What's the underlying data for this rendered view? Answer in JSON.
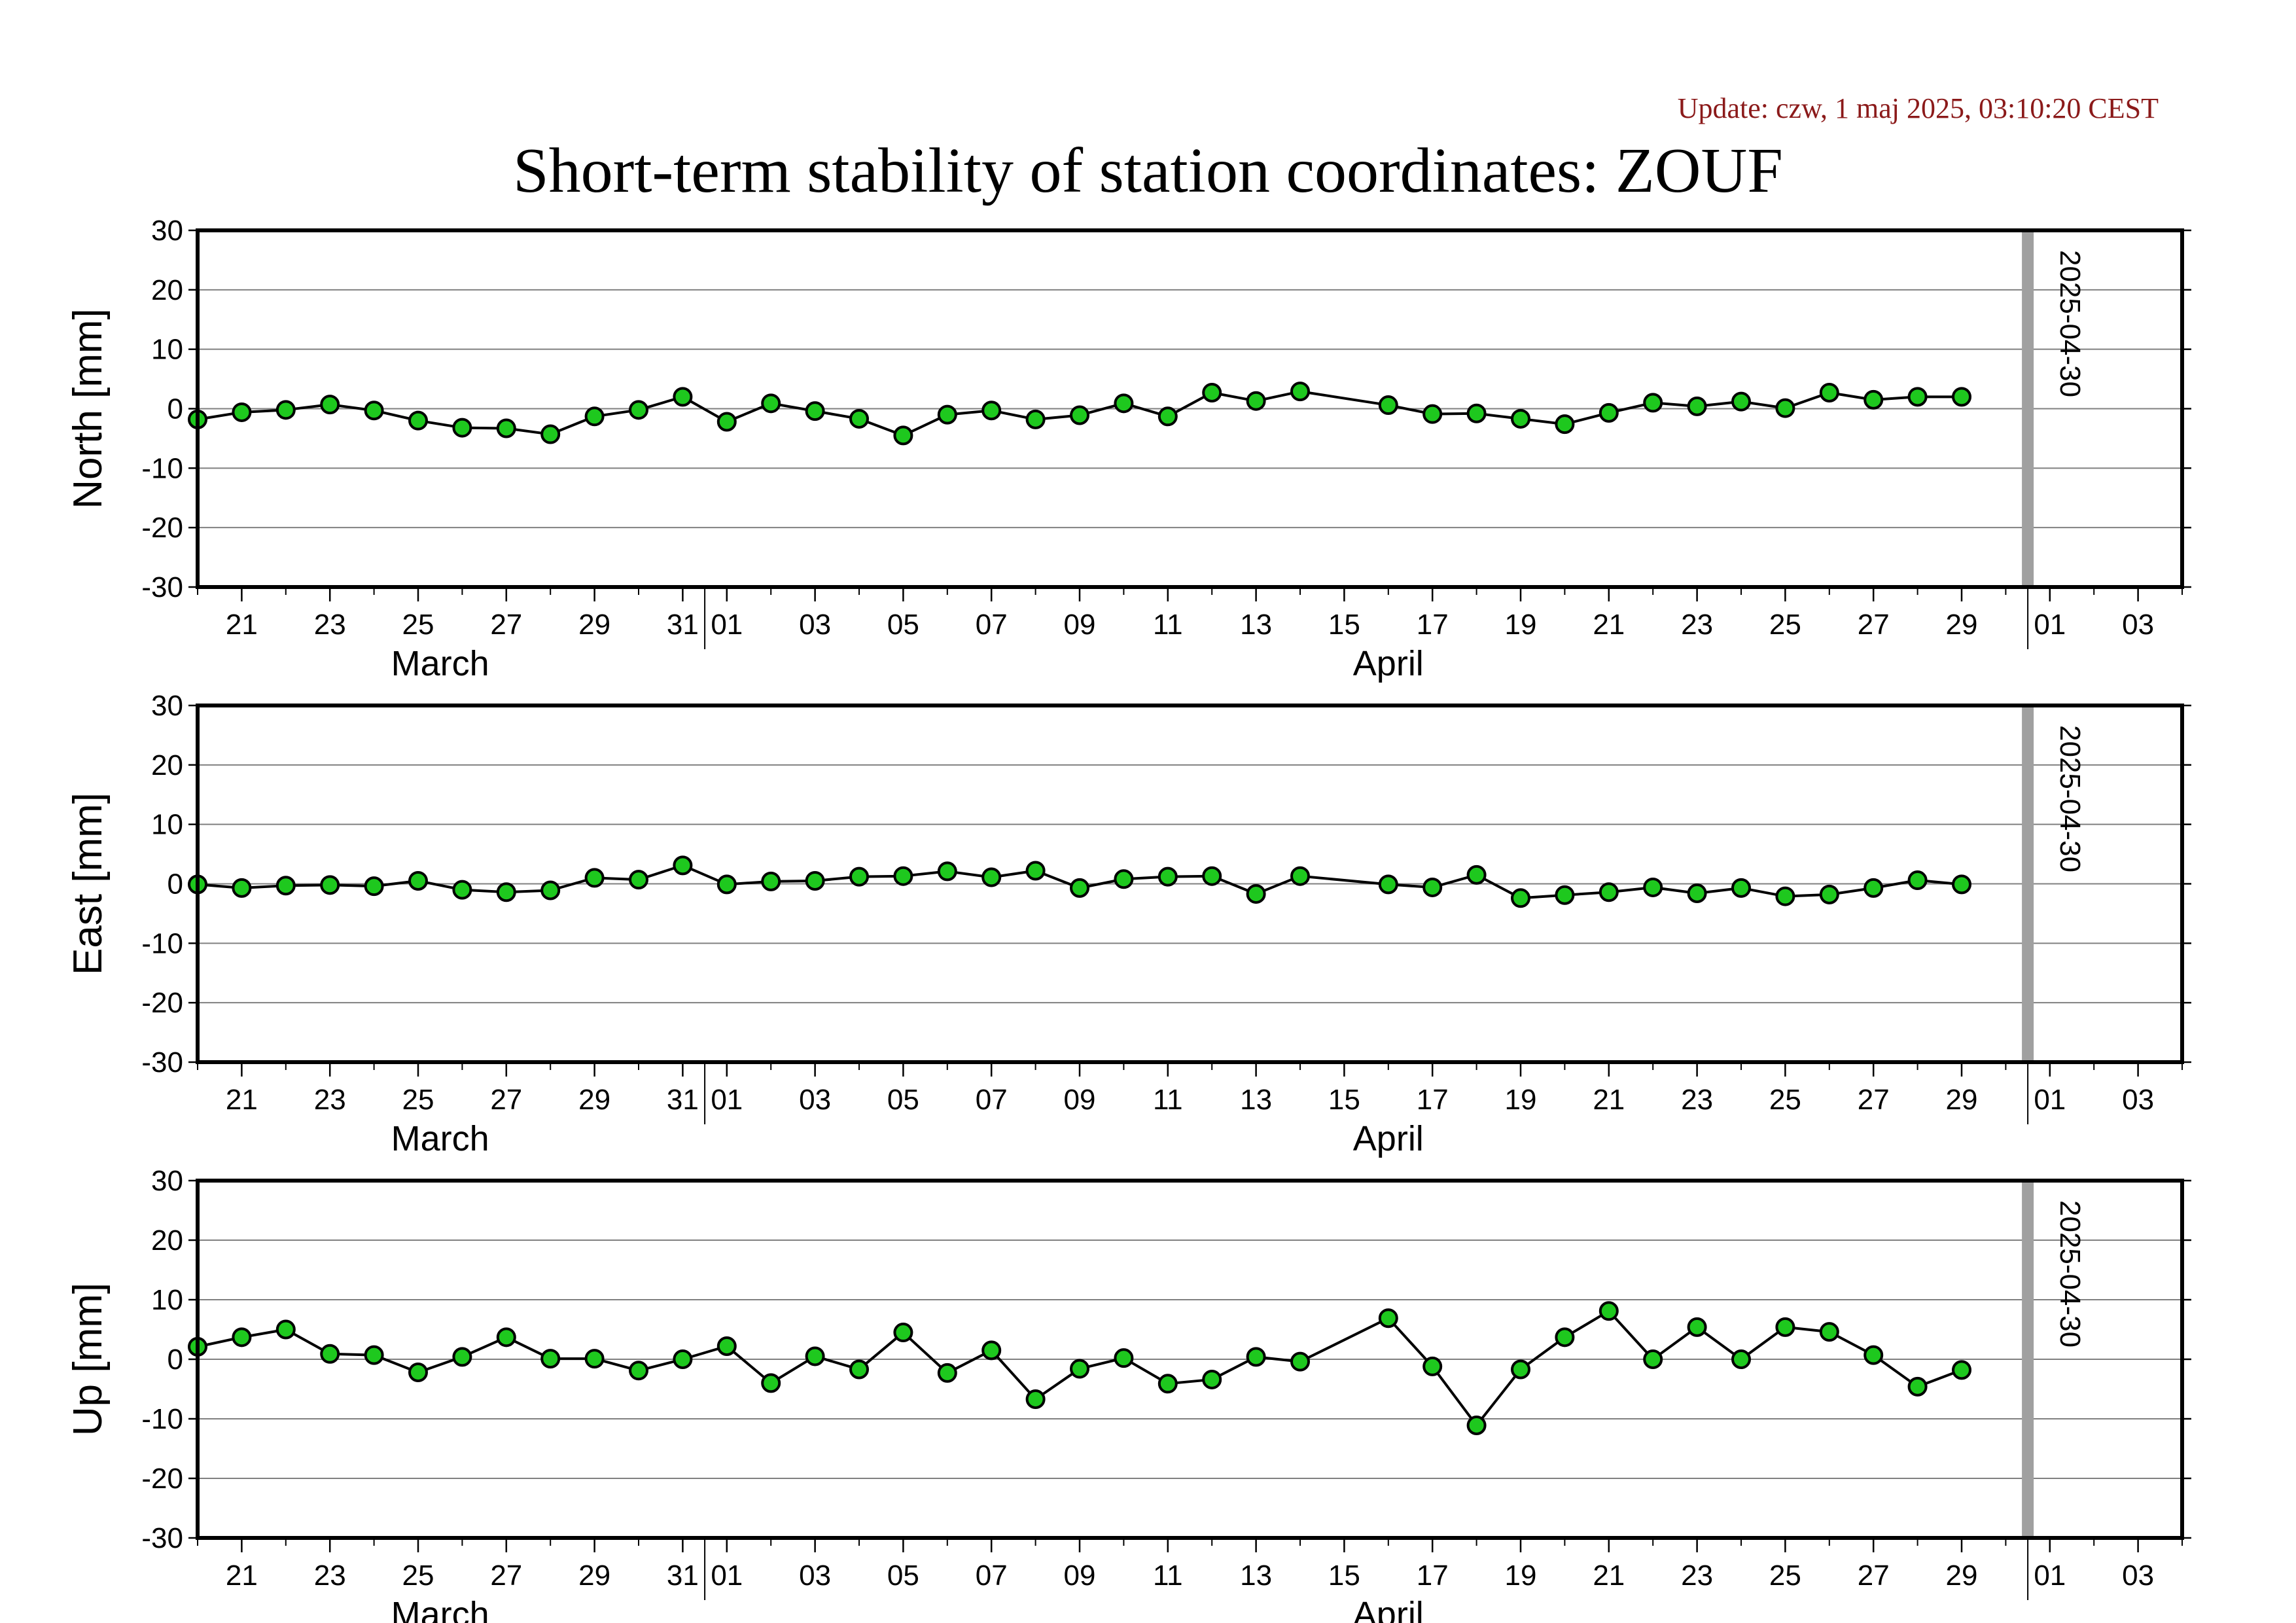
{
  "header": {
    "update": "Update: czw, 1 maj 2025, 03:10:20 CEST",
    "title": "Short-term stability of station coordinates: ZOUF"
  },
  "colors": {
    "marker_fill": "#1ec81e",
    "marker_stroke": "#000000",
    "line": "#000000",
    "grid": "#808080",
    "date_marker": "#a0a0a0",
    "update_text": "#8b1a1a"
  },
  "chart_data": [
    {
      "type": "line",
      "ylabel": "North [mm]",
      "ylim": [
        -30,
        30
      ],
      "yticks": [
        30,
        20,
        10,
        0,
        -10,
        -20,
        -30
      ],
      "xlim": [
        "2025-03-20",
        "2025-05-04"
      ],
      "x_tick_labels": [
        "21",
        "23",
        "25",
        "27",
        "29",
        "31",
        "01",
        "03",
        "05",
        "07",
        "09",
        "11",
        "13",
        "15",
        "17",
        "19",
        "21",
        "23",
        "25",
        "27",
        "29",
        "01",
        "03"
      ],
      "months": [
        "March",
        "April"
      ],
      "date_marker": "2025-04-30",
      "grid": true,
      "x": [
        "2025-03-20",
        "2025-03-21",
        "2025-03-22",
        "2025-03-23",
        "2025-03-24",
        "2025-03-25",
        "2025-03-26",
        "2025-03-27",
        "2025-03-28",
        "2025-03-29",
        "2025-03-30",
        "2025-03-31",
        "2025-04-01",
        "2025-04-02",
        "2025-04-03",
        "2025-04-04",
        "2025-04-05",
        "2025-04-06",
        "2025-04-07",
        "2025-04-08",
        "2025-04-09",
        "2025-04-10",
        "2025-04-11",
        "2025-04-12",
        "2025-04-13",
        "2025-04-14",
        "2025-04-16",
        "2025-04-17",
        "2025-04-18",
        "2025-04-19",
        "2025-04-20",
        "2025-04-21",
        "2025-04-22",
        "2025-04-23",
        "2025-04-24",
        "2025-04-25",
        "2025-04-26",
        "2025-04-27",
        "2025-04-28",
        "2025-04-29"
      ],
      "values": [
        -1.8,
        -0.6,
        -0.2,
        0.7,
        -0.3,
        -2.0,
        -3.2,
        -3.3,
        -4.3,
        -1.3,
        -0.2,
        2.0,
        -2.2,
        0.9,
        -0.4,
        -1.7,
        -4.5,
        -1.0,
        -0.3,
        -1.8,
        -1.1,
        0.9,
        -1.3,
        2.7,
        1.3,
        2.9,
        0.6,
        -0.9,
        -0.8,
        -1.7,
        -2.6,
        -0.7,
        1.0,
        0.4,
        1.2,
        0.1,
        2.7,
        1.5,
        2.0,
        2.0
      ]
    },
    {
      "type": "line",
      "ylabel": "East [mm]",
      "ylim": [
        -30,
        30
      ],
      "yticks": [
        30,
        20,
        10,
        0,
        -10,
        -20,
        -30
      ],
      "xlim": [
        "2025-03-20",
        "2025-05-04"
      ],
      "x_tick_labels": [
        "21",
        "23",
        "25",
        "27",
        "29",
        "31",
        "01",
        "03",
        "05",
        "07",
        "09",
        "11",
        "13",
        "15",
        "17",
        "19",
        "21",
        "23",
        "25",
        "27",
        "29",
        "01",
        "03"
      ],
      "months": [
        "March",
        "April"
      ],
      "date_marker": "2025-04-30",
      "grid": true,
      "x": [
        "2025-03-20",
        "2025-03-21",
        "2025-03-22",
        "2025-03-23",
        "2025-03-24",
        "2025-03-25",
        "2025-03-26",
        "2025-03-27",
        "2025-03-28",
        "2025-03-29",
        "2025-03-30",
        "2025-03-31",
        "2025-04-01",
        "2025-04-02",
        "2025-04-03",
        "2025-04-04",
        "2025-04-05",
        "2025-04-06",
        "2025-04-07",
        "2025-04-08",
        "2025-04-09",
        "2025-04-10",
        "2025-04-11",
        "2025-04-12",
        "2025-04-13",
        "2025-04-14",
        "2025-04-16",
        "2025-04-17",
        "2025-04-18",
        "2025-04-19",
        "2025-04-20",
        "2025-04-21",
        "2025-04-22",
        "2025-04-23",
        "2025-04-24",
        "2025-04-25",
        "2025-04-26",
        "2025-04-27",
        "2025-04-28",
        "2025-04-29"
      ],
      "values": [
        -0.1,
        -0.7,
        -0.3,
        -0.2,
        -0.4,
        0.5,
        -1.0,
        -1.4,
        -1.1,
        1.0,
        0.7,
        3.1,
        -0.1,
        0.4,
        0.5,
        1.2,
        1.3,
        2.1,
        1.1,
        2.2,
        -0.7,
        0.8,
        1.2,
        1.3,
        -1.7,
        1.3,
        -0.1,
        -0.6,
        1.5,
        -2.4,
        -1.9,
        -1.4,
        -0.6,
        -1.6,
        -0.7,
        -2.1,
        -1.8,
        -0.7,
        0.6,
        -0.1
      ]
    },
    {
      "type": "line",
      "ylabel": "Up [mm]",
      "ylim": [
        -30,
        30
      ],
      "yticks": [
        30,
        20,
        10,
        0,
        -10,
        -20,
        -30
      ],
      "xlim": [
        "2025-03-20",
        "2025-05-04"
      ],
      "x_tick_labels": [
        "21",
        "23",
        "25",
        "27",
        "29",
        "31",
        "01",
        "03",
        "05",
        "07",
        "09",
        "11",
        "13",
        "15",
        "17",
        "19",
        "21",
        "23",
        "25",
        "27",
        "29",
        "01",
        "03"
      ],
      "months": [
        "March",
        "April"
      ],
      "date_marker": "2025-04-30",
      "grid": true,
      "x": [
        "2025-03-20",
        "2025-03-21",
        "2025-03-22",
        "2025-03-23",
        "2025-03-24",
        "2025-03-25",
        "2025-03-26",
        "2025-03-27",
        "2025-03-28",
        "2025-03-29",
        "2025-03-30",
        "2025-03-31",
        "2025-04-01",
        "2025-04-02",
        "2025-04-03",
        "2025-04-04",
        "2025-04-05",
        "2025-04-06",
        "2025-04-07",
        "2025-04-08",
        "2025-04-09",
        "2025-04-10",
        "2025-04-11",
        "2025-04-12",
        "2025-04-13",
        "2025-04-14",
        "2025-04-16",
        "2025-04-17",
        "2025-04-18",
        "2025-04-19",
        "2025-04-20",
        "2025-04-21",
        "2025-04-22",
        "2025-04-23",
        "2025-04-24",
        "2025-04-25",
        "2025-04-26",
        "2025-04-27",
        "2025-04-28",
        "2025-04-29"
      ],
      "values": [
        2.1,
        3.7,
        5.0,
        0.9,
        0.7,
        -2.2,
        0.4,
        3.7,
        0.1,
        0.1,
        -1.9,
        0.0,
        2.2,
        -4.0,
        0.5,
        -1.7,
        4.5,
        -2.3,
        1.5,
        -6.7,
        -1.6,
        0.2,
        -4.1,
        -3.4,
        0.4,
        -0.4,
        6.9,
        -1.2,
        -11.1,
        -1.7,
        3.7,
        8.1,
        0.0,
        5.4,
        0.0,
        5.4,
        4.6,
        0.7,
        -4.6,
        -1.8
      ]
    }
  ]
}
